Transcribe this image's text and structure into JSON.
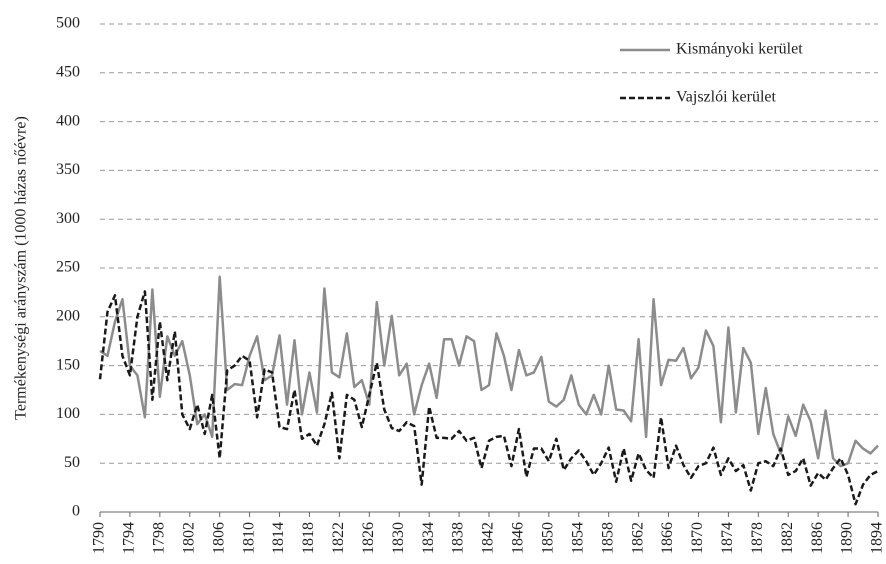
{
  "chart_data": {
    "type": "line",
    "y_label": "Termékenységi arányszám  (1000 házas nőévre)",
    "x": [
      1790,
      1791,
      1792,
      1793,
      1794,
      1795,
      1796,
      1797,
      1798,
      1799,
      1800,
      1801,
      1802,
      1803,
      1804,
      1805,
      1806,
      1807,
      1808,
      1809,
      1810,
      1811,
      1812,
      1813,
      1814,
      1815,
      1816,
      1817,
      1818,
      1819,
      1820,
      1821,
      1822,
      1823,
      1824,
      1825,
      1826,
      1827,
      1828,
      1829,
      1830,
      1831,
      1832,
      1833,
      1834,
      1835,
      1836,
      1837,
      1838,
      1839,
      1840,
      1841,
      1842,
      1843,
      1844,
      1845,
      1846,
      1847,
      1848,
      1849,
      1850,
      1851,
      1852,
      1853,
      1854,
      1855,
      1856,
      1857,
      1858,
      1859,
      1860,
      1861,
      1862,
      1863,
      1864,
      1865,
      1866,
      1867,
      1868,
      1869,
      1870,
      1871,
      1872,
      1873,
      1874,
      1875,
      1876,
      1877,
      1878,
      1879,
      1880,
      1881,
      1882,
      1883,
      1884,
      1885,
      1886,
      1887,
      1888,
      1889,
      1890,
      1891,
      1892,
      1893,
      1894
    ],
    "series": [
      {
        "name": "Kismányoki kerület",
        "color": "#8c8c8c",
        "dash": false,
        "values": [
          165,
          160,
          195,
          218,
          150,
          140,
          97,
          228,
          118,
          180,
          160,
          175,
          140,
          90,
          100,
          77,
          241,
          125,
          131,
          130,
          160,
          180,
          135,
          140,
          181,
          110,
          176,
          100,
          143,
          102,
          229,
          143,
          138,
          183,
          128,
          135,
          110,
          215,
          150,
          201,
          140,
          152,
          100,
          130,
          152,
          117,
          177,
          177,
          150,
          180,
          175,
          125,
          130,
          183,
          160,
          125,
          166,
          140,
          143,
          159,
          113,
          108,
          115,
          140,
          110,
          100,
          120,
          100,
          150,
          105,
          104,
          93,
          177,
          77,
          218,
          130,
          156,
          155,
          168,
          137,
          148,
          186,
          170,
          92,
          189,
          102,
          168,
          153,
          80,
          127,
          80,
          60,
          98,
          78,
          110,
          93,
          55,
          104,
          55,
          47,
          50,
          73,
          65,
          60,
          68
        ]
      },
      {
        "name": "Vajszlói kerület",
        "color": "#1a1a1a",
        "dash": true,
        "values": [
          136,
          205,
          222,
          160,
          140,
          200,
          226,
          115,
          195,
          135,
          185,
          100,
          85,
          110,
          80,
          120,
          55,
          145,
          150,
          160,
          155,
          97,
          146,
          143,
          87,
          85,
          125,
          75,
          80,
          68,
          90,
          122,
          55,
          120,
          115,
          87,
          120,
          153,
          105,
          86,
          83,
          92,
          88,
          28,
          108,
          76,
          76,
          75,
          83,
          73,
          76,
          45,
          73,
          77,
          78,
          47,
          85,
          36,
          65,
          65,
          52,
          75,
          43,
          55,
          63,
          52,
          38,
          50,
          66,
          31,
          65,
          32,
          60,
          43,
          35,
          97,
          45,
          68,
          48,
          35,
          47,
          50,
          66,
          38,
          55,
          42,
          48,
          22,
          50,
          52,
          47,
          65,
          38,
          42,
          55,
          27,
          40,
          33,
          45,
          55,
          38,
          8,
          28,
          38,
          42
        ]
      }
    ],
    "xlim": [
      1790,
      1894
    ],
    "xticks": [
      1790,
      1794,
      1798,
      1802,
      1806,
      1810,
      1814,
      1818,
      1822,
      1826,
      1830,
      1834,
      1838,
      1842,
      1846,
      1850,
      1854,
      1858,
      1862,
      1866,
      1870,
      1874,
      1878,
      1882,
      1886,
      1890,
      1894
    ],
    "ylim": [
      0,
      500
    ],
    "yticks": [
      0,
      50,
      100,
      150,
      200,
      250,
      300,
      350,
      400,
      450,
      500
    ],
    "grid": true,
    "legend": "top-right"
  }
}
